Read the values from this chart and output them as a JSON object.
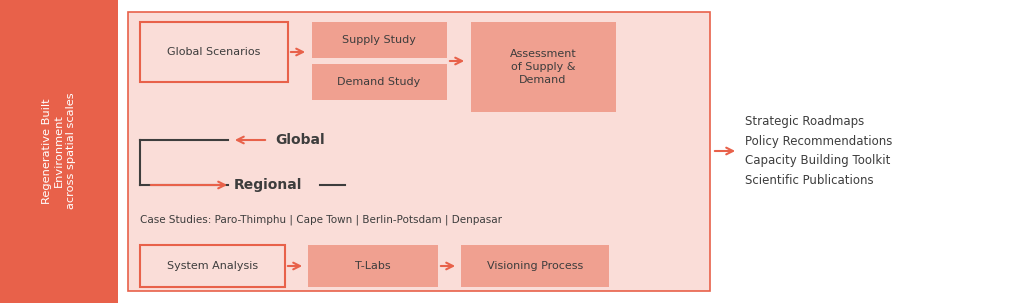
{
  "fig_width": 10.24,
  "fig_height": 3.03,
  "dpi": 100,
  "bg_color": "#ffffff",
  "salmon_dark": "#E8614A",
  "salmon_light": "#FADDD8",
  "salmon_medium": "#F0A090",
  "text_dark": "#3d3d3d",
  "text_white": "#ffffff",
  "left_bar_color": "#E8614A",
  "left_bar_text": "Regenerative Built\nEnvironment\nacross spatial scales",
  "box1_text": "Global Scenarios",
  "box2a_text": "Supply Study",
  "box2b_text": "Demand Study",
  "box3_text": "Assessment\nof Supply &\nDemand",
  "box4_text": "System Analysis",
  "box5_text": "T-Labs",
  "box6_text": "Visioning Process",
  "global_label": "Global",
  "regional_label": "Regional",
  "case_studies_text": "Case Studies: Paro-Thimphu | Cape Town | Berlin-Potsdam | Denpasar",
  "output_lines": "Strategic Roadmaps\nPolicy Recommendations\nCapacity Building Toolkit\nScientific Publications"
}
